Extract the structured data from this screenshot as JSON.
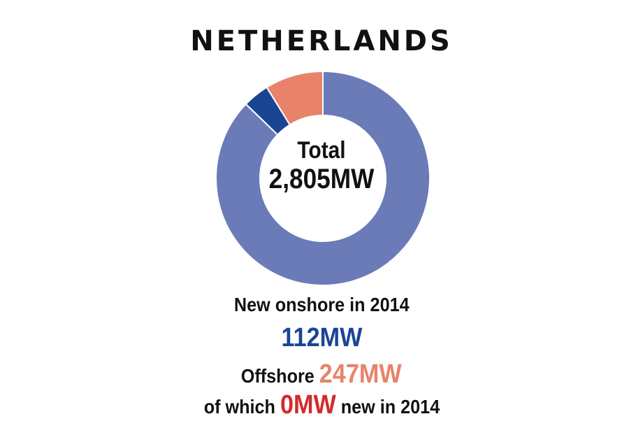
{
  "title": "NETHERLANDS",
  "center": {
    "label": "Total",
    "value": "2,805MW"
  },
  "captions": {
    "onshore_label": "New onshore in 2014",
    "onshore_value": "112MW",
    "offshore_label": "Offshore",
    "offshore_value": "247MW",
    "which_prefix": "of which",
    "which_value": "0MW",
    "which_suffix": "new in 2014"
  },
  "colors": {
    "existing_onshore": "#6a7bb8",
    "new_onshore": "#1a4595",
    "offshore": "#e8836a",
    "offshore_new": "#d42a2a"
  },
  "chart_data": {
    "type": "pie",
    "title": "NETHERLANDS",
    "total": 2805,
    "unit": "MW",
    "slices": [
      {
        "value": 2446,
        "color": "#6a7bb8"
      },
      {
        "value": 112,
        "color": "#1a4595"
      },
      {
        "value": 247,
        "color": "#e8836a"
      }
    ]
  }
}
